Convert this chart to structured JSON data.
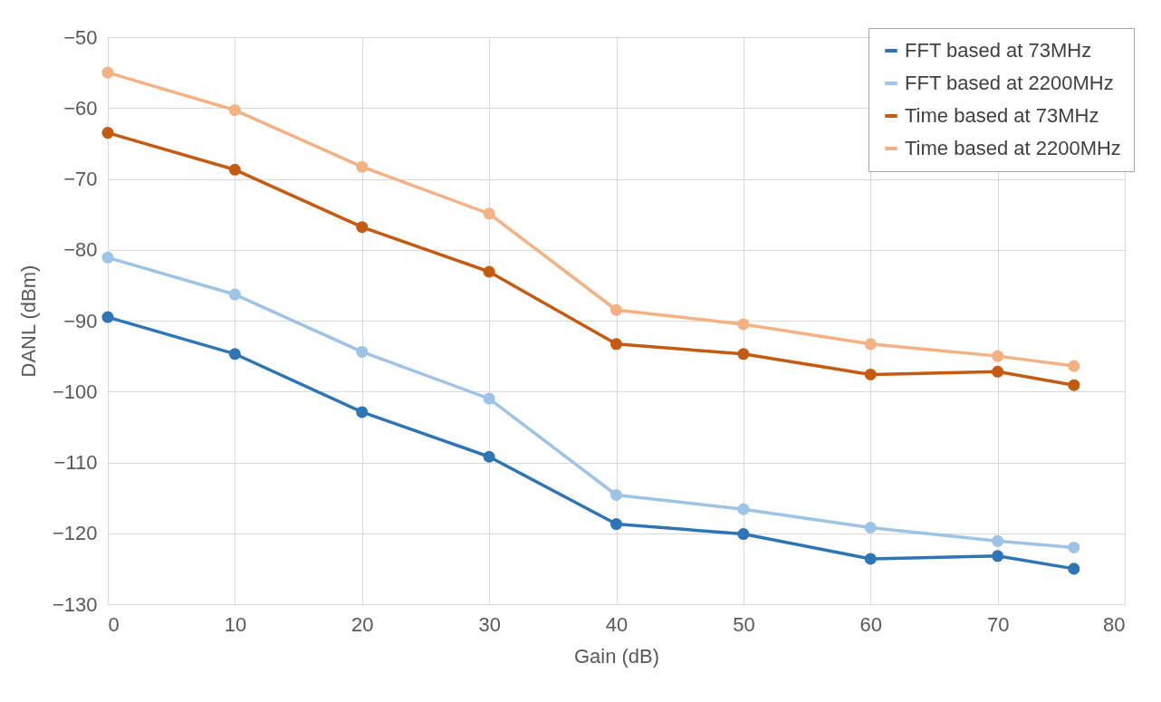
{
  "chart_data": {
    "type": "line",
    "xlabel": "Gain (dB)",
    "ylabel": "DANL (dBm)",
    "x": [
      0,
      10,
      20,
      30,
      40,
      50,
      60,
      70,
      76
    ],
    "xlim": [
      0,
      80
    ],
    "xticks": [
      0,
      10,
      20,
      30,
      40,
      50,
      60,
      70,
      80
    ],
    "ylim": [
      -130,
      -50
    ],
    "yticks": [
      -130,
      -120,
      -110,
      -100,
      -90,
      -80,
      -70,
      -60,
      -50
    ],
    "grid": true,
    "legend": "top right",
    "marker": "circle",
    "line_style": "solid",
    "series": [
      {
        "name": "FFT based at 73MHz",
        "color": "#2e75b6",
        "values": [
          -89.5,
          -94.7,
          -102.9,
          -109.2,
          -118.7,
          -120.1,
          -123.6,
          -123.2,
          -125.0
        ]
      },
      {
        "name": "FFT based at 2200MHz",
        "color": "#9dc3e6",
        "values": [
          -81.1,
          -86.3,
          -94.4,
          -101.0,
          -114.6,
          -116.6,
          -119.2,
          -121.1,
          -122.0
        ]
      },
      {
        "name": "Time based at 73MHz",
        "color": "#c55a11",
        "values": [
          -63.5,
          -68.7,
          -76.8,
          -83.1,
          -93.3,
          -94.7,
          -97.6,
          -97.2,
          -99.1
        ]
      },
      {
        "name": "Time based at 2200MHz",
        "color": "#f4b183",
        "values": [
          -55.0,
          -60.3,
          -68.3,
          -74.9,
          -88.5,
          -90.5,
          -93.3,
          -95.0,
          -96.4
        ]
      }
    ]
  }
}
